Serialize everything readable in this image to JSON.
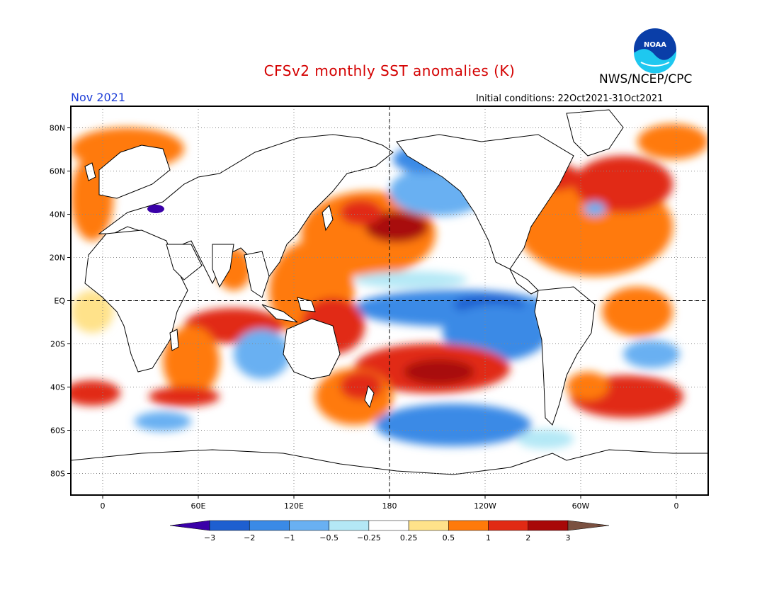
{
  "title": "CFSv2 monthly SST anomalies (K)",
  "organization": "NWS/NCEP/CPC",
  "logo_text": "NOAA",
  "month_label": "Nov 2021",
  "initial_conditions": "Initial conditions: 22Oct2021-31Oct2021",
  "map": {
    "lon_range": [
      -20,
      380
    ],
    "lat_range": [
      -90,
      90
    ],
    "lat_ticks": [
      {
        "lat": 80,
        "label": "80N"
      },
      {
        "lat": 60,
        "label": "60N"
      },
      {
        "lat": 40,
        "label": "40N"
      },
      {
        "lat": 20,
        "label": "20N"
      },
      {
        "lat": 0,
        "label": "EQ"
      },
      {
        "lat": -20,
        "label": "20S"
      },
      {
        "lat": -40,
        "label": "40S"
      },
      {
        "lat": -60,
        "label": "60S"
      },
      {
        "lat": -80,
        "label": "80S"
      }
    ],
    "lon_ticks": [
      {
        "lon": 0,
        "label": "0"
      },
      {
        "lon": 60,
        "label": "60E"
      },
      {
        "lon": 120,
        "label": "120E"
      },
      {
        "lon": 180,
        "label": "180"
      },
      {
        "lon": 240,
        "label": "120W"
      },
      {
        "lon": 300,
        "label": "60W"
      },
      {
        "lon": 360,
        "label": "0"
      }
    ],
    "reference_lines": {
      "equator_lat": 0,
      "dateline_lon": 180
    }
  },
  "colorbar": {
    "levels": [
      "-3",
      "-2",
      "-1",
      "-0.5",
      "-0.25",
      "0.25",
      "0.5",
      "1",
      "2",
      "3"
    ],
    "colors": [
      "#3a00a8",
      "#1e5fd0",
      "#3a8ae6",
      "#69b0f2",
      "#b4e8f6",
      "#ffffff",
      "#ffe28a",
      "#ff7a0a",
      "#e12a14",
      "#a80808",
      "#7a5040"
    ]
  },
  "colors": {
    "land": "#ffffff",
    "coast": "#000000",
    "title": "#d40000",
    "month": "#1f3fd8",
    "logo_blue": "#0a3ea8",
    "logo_cyan": "#1ec8f0"
  }
}
